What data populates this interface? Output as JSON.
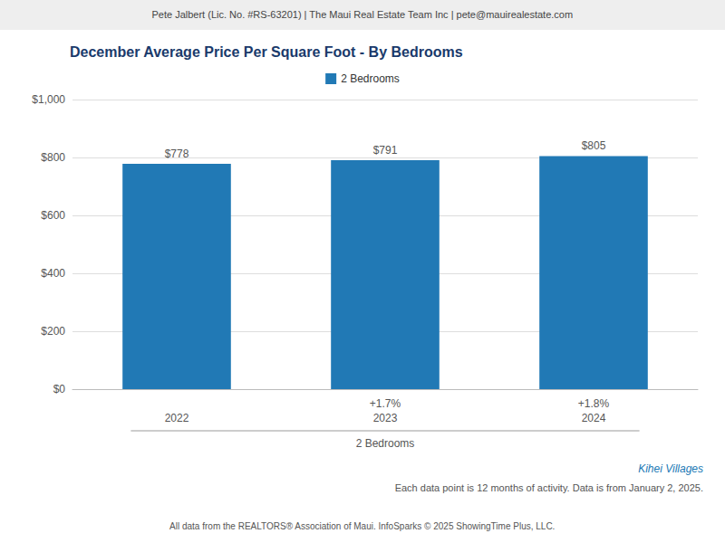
{
  "chart_data": {
    "type": "bar",
    "title": "December Average Price Per Square Foot - By Bedrooms",
    "subtitle": "Pete Jalbert (Lic. No. #RS-63201) | The Maui Real Estate Team Inc | pete@mauirealestate.com",
    "categories": [
      "2022",
      "2023",
      "2024"
    ],
    "series": [
      {
        "name": "2 Bedrooms",
        "color": "#2179B5",
        "values": [
          778,
          791,
          805
        ],
        "value_labels": [
          "$778",
          "$791",
          "$805"
        ]
      }
    ],
    "data_labels": true,
    "legend": "top",
    "xlabel": "2 Bedrooms",
    "ylim": [
      0,
      1000
    ],
    "yticks": [
      {
        "value": 0,
        "label": "$0"
      },
      {
        "value": 200,
        "label": "$200"
      },
      {
        "value": 400,
        "label": "$400"
      },
      {
        "value": 600,
        "label": "$600"
      },
      {
        "value": 800,
        "label": "$800"
      },
      {
        "value": 1000,
        "label": "$1,000"
      }
    ],
    "grid": true,
    "annotations": [
      {
        "x": "2023",
        "text": "+1.7%"
      },
      {
        "x": "2024",
        "text": "+1.8%"
      }
    ],
    "footnotes": [
      "Kihei Villages",
      "Each data point is 12 months of activity. Data is from January 2, 2025.",
      "All data from the REALTORS® Association of Maui. InfoSparks © 2025 ShowingTime Plus, LLC."
    ]
  }
}
